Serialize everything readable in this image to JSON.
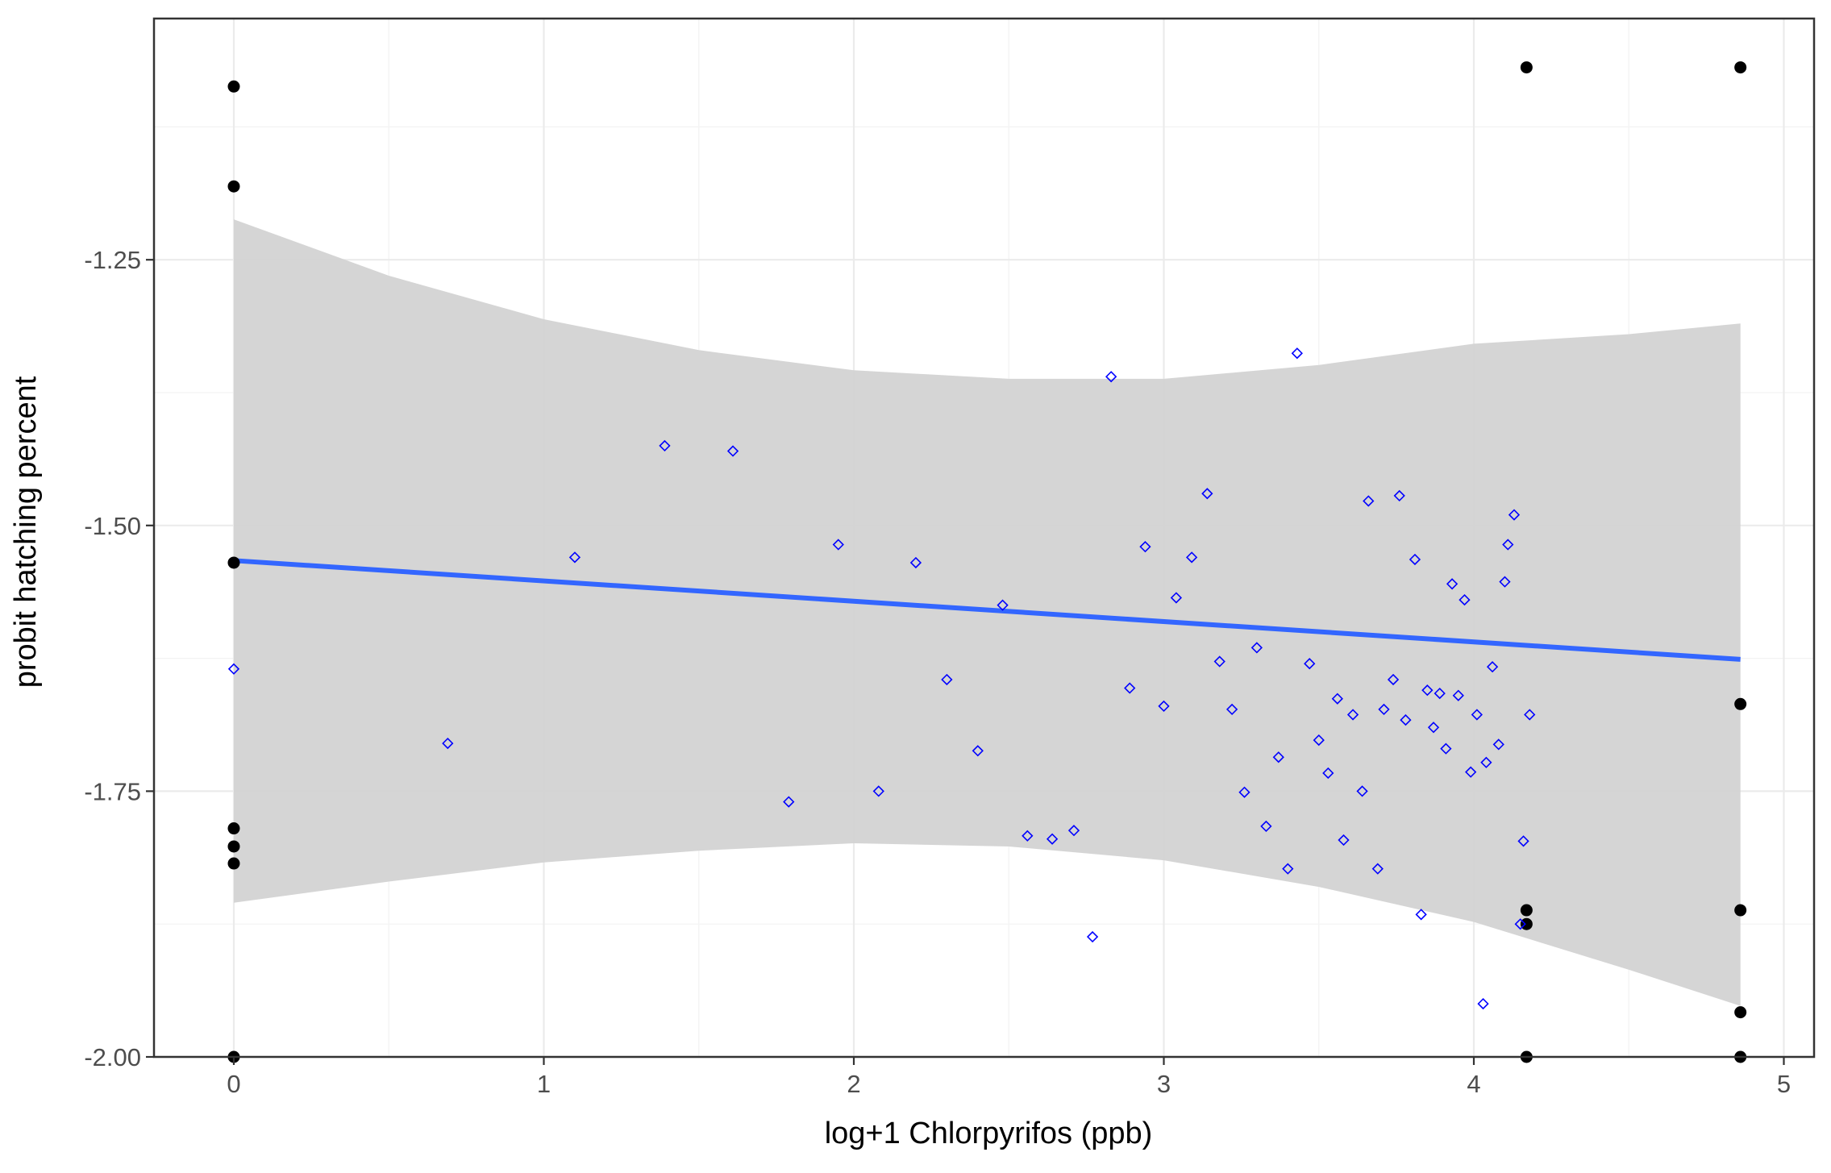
{
  "chart_data": {
    "type": "scatter",
    "title": "",
    "xlabel": "log+1 Chlorpyrifos (ppb)",
    "ylabel": "probit hatching percent",
    "xlim": [
      -0.25,
      5.1
    ],
    "ylim": [
      -2.0,
      -1.05
    ],
    "x_ticks": [
      0,
      1,
      2,
      3,
      4,
      5
    ],
    "x_tick_labels": [
      "0",
      "1",
      "2",
      "3",
      "4",
      "5"
    ],
    "y_ticks": [
      -2.0,
      -1.75,
      -1.5,
      -1.25
    ],
    "y_tick_labels": [
      "-2.00",
      "-1.75",
      "-1.50",
      "-1.25"
    ],
    "grid": true,
    "theme": "bw",
    "colors": {
      "observed": "#0000ff",
      "boundary": "#000000",
      "fit_line": "#3366ff",
      "ribbon": "#d3d3d3"
    },
    "series": [
      {
        "type": "scatter",
        "shape": "open-diamond",
        "points": [
          [
            0.0,
            -1.635
          ],
          [
            0.69,
            -1.705
          ],
          [
            1.1,
            -1.53
          ],
          [
            1.39,
            -1.425
          ],
          [
            1.61,
            -1.43
          ],
          [
            1.79,
            -1.76
          ],
          [
            1.95,
            -1.518
          ],
          [
            2.08,
            -1.75
          ],
          [
            2.2,
            -1.535
          ],
          [
            2.3,
            -1.645
          ],
          [
            2.4,
            -1.712
          ],
          [
            2.48,
            -1.575
          ],
          [
            2.56,
            -1.792
          ],
          [
            2.64,
            -1.795
          ],
          [
            2.71,
            -1.787
          ],
          [
            2.77,
            -1.887
          ],
          [
            2.83,
            -1.36
          ],
          [
            2.89,
            -1.653
          ],
          [
            2.94,
            -1.52
          ],
          [
            3.0,
            -1.67
          ],
          [
            3.04,
            -1.568
          ],
          [
            3.09,
            -1.53
          ],
          [
            3.14,
            -1.47
          ],
          [
            3.18,
            -1.628
          ],
          [
            3.22,
            -1.673
          ],
          [
            3.26,
            -1.751
          ],
          [
            3.3,
            -1.615
          ],
          [
            3.33,
            -1.783
          ],
          [
            3.37,
            -1.718
          ],
          [
            3.4,
            -1.823
          ],
          [
            3.43,
            -1.338
          ],
          [
            3.47,
            -1.63
          ],
          [
            3.5,
            -1.702
          ],
          [
            3.53,
            -1.733
          ],
          [
            3.56,
            -1.663
          ],
          [
            3.58,
            -1.796
          ],
          [
            3.61,
            -1.678
          ],
          [
            3.64,
            -1.75
          ],
          [
            3.66,
            -1.477
          ],
          [
            3.69,
            -1.823
          ],
          [
            3.71,
            -1.673
          ],
          [
            3.74,
            -1.645
          ],
          [
            3.76,
            -1.472
          ],
          [
            3.78,
            -1.683
          ],
          [
            3.81,
            -1.532
          ],
          [
            3.83,
            -1.866
          ],
          [
            3.85,
            -1.655
          ],
          [
            3.87,
            -1.69
          ],
          [
            3.89,
            -1.658
          ],
          [
            3.91,
            -1.71
          ],
          [
            3.93,
            -1.555
          ],
          [
            3.95,
            -1.66
          ],
          [
            3.97,
            -1.57
          ],
          [
            3.99,
            -1.732
          ],
          [
            4.01,
            -1.678
          ],
          [
            4.03,
            -1.95
          ],
          [
            4.04,
            -1.723
          ],
          [
            4.06,
            -1.633
          ],
          [
            4.08,
            -1.706
          ],
          [
            4.1,
            -1.553
          ],
          [
            4.11,
            -1.518
          ],
          [
            4.13,
            -1.49
          ],
          [
            4.15,
            -1.875
          ],
          [
            4.16,
            -1.797
          ],
          [
            4.18,
            -1.678
          ]
        ]
      },
      {
        "type": "scatter",
        "shape": "filled-circle",
        "points": [
          [
            0.0,
            -1.087
          ],
          [
            0.0,
            -1.181
          ],
          [
            0.0,
            -1.535
          ],
          [
            0.0,
            -1.785
          ],
          [
            0.0,
            -1.802
          ],
          [
            0.0,
            -1.818
          ],
          [
            0.0,
            -2.0
          ],
          [
            4.17,
            -1.069
          ],
          [
            4.17,
            -1.862
          ],
          [
            4.17,
            -1.875
          ],
          [
            4.17,
            -2.0
          ],
          [
            4.86,
            -1.069
          ],
          [
            4.86,
            -1.668
          ],
          [
            4.86,
            -1.862
          ],
          [
            4.86,
            -1.958
          ],
          [
            4.86,
            -2.0
          ]
        ]
      },
      {
        "type": "line",
        "method": "linear fit",
        "points": [
          [
            0.0,
            -1.533
          ],
          [
            4.86,
            -1.626
          ]
        ]
      },
      {
        "type": "area",
        "role": "confidence band",
        "x": [
          0.0,
          0.5,
          1.0,
          1.5,
          2.0,
          2.5,
          3.0,
          3.5,
          4.0,
          4.5,
          4.86
        ],
        "upper": [
          -1.212,
          -1.265,
          -1.306,
          -1.335,
          -1.354,
          -1.362,
          -1.362,
          -1.349,
          -1.329,
          -1.32,
          -1.31
        ],
        "lower": [
          -1.855,
          -1.835,
          -1.817,
          -1.806,
          -1.799,
          -1.802,
          -1.815,
          -1.84,
          -1.873,
          -1.918,
          -1.952
        ]
      }
    ]
  }
}
